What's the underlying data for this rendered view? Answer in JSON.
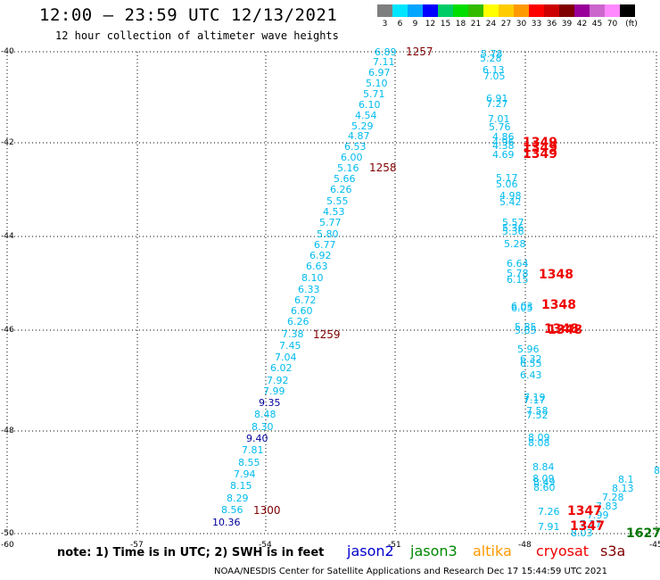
{
  "header": {
    "title": "12:00 – 23:59 UTC 12/13/2021",
    "subtitle": "12 hour collection of altimeter wave heights"
  },
  "legend": {
    "colors": [
      "#7f7f7f",
      "#00e5ff",
      "#00a6ff",
      "#0000ff",
      "#00cc66",
      "#00dd00",
      "#33bb00",
      "#ffff00",
      "#ffcc00",
      "#ff9900",
      "#ff0000",
      "#cc0000",
      "#800000",
      "#990099",
      "#cc66cc",
      "#ff88ff",
      "#000000"
    ],
    "labels": [
      "3",
      "6",
      "9",
      "12",
      "15",
      "18",
      "21",
      "24",
      "27",
      "30",
      "33",
      "36",
      "39",
      "42",
      "45",
      "70",
      "(ft)"
    ]
  },
  "map": {
    "lat_labels": [
      "-40",
      "-42",
      "-44",
      "-46",
      "-48",
      "-50"
    ],
    "lon_labels": [
      "-60",
      "-57",
      "-54",
      "-51",
      "-48",
      "-45"
    ],
    "colors": {
      "cyan": "#00bbee",
      "navy": "#000099",
      "red": "#ee0000",
      "darkred": "#800000",
      "green": "#007700"
    },
    "tracks": [
      {
        "name": "track-west",
        "color": "cyan",
        "values": [
          "6.89",
          "7.11",
          "6.97",
          "5.10",
          "5.71",
          "6.10",
          "4.54",
          "5.29",
          "4.87",
          "6.53",
          "6.00",
          "5.16",
          "5.66",
          "6.26",
          "5.55",
          "4.53",
          "5.77",
          "5.80",
          "6.77",
          "6.92",
          "6.63",
          "8.10",
          "6.33",
          "6.72",
          "6.60",
          "6.26",
          "7.38",
          "7.45",
          "7.04",
          "6.02",
          "7.92",
          "7.99",
          "9.35",
          "8.48",
          "8.30",
          "9.40",
          "7.81",
          "8.55",
          "7.94",
          "8.15",
          "8.29",
          "8.56",
          "10.36"
        ]
      },
      {
        "name": "track-east",
        "color": "cyan",
        "values": [
          "5.78",
          "5.28",
          "6.13",
          "7.05",
          "6.91",
          "7.27",
          "7.01",
          "5.76",
          "4.86",
          "4.96",
          "4.38",
          "4.69",
          "5.17",
          "5.06",
          "4.98",
          "5.42",
          "5.57",
          "5.36",
          "5.36",
          "5.28",
          "6.64",
          "5.78",
          "6.15",
          "6.03",
          "6.05",
          "5.85",
          "5.85",
          "5.96",
          "6.32",
          "6.55",
          "6.43",
          "7.19",
          "7.17",
          "7.58",
          "7.52",
          "8.09",
          "8.08",
          "8.84",
          "8.09",
          "8.49",
          "8.60",
          "7.26",
          "7.91",
          "8.03",
          "7.27",
          "7.99",
          "7.83",
          "7.28",
          "8.13",
          "8.1",
          "8"
        ]
      }
    ],
    "time_stamps": [
      "1257",
      "1258",
      "1259",
      "1300",
      "1349",
      "1348",
      "1347",
      "1627"
    ]
  },
  "footer": {
    "note": "note:  1) Time is in UTC; 2) SWH is in feet",
    "satellites": [
      {
        "name": "jason2",
        "color": "#0000cc"
      },
      {
        "name": "jason3",
        "color": "#008800"
      },
      {
        "name": "altika",
        "color": "#ff9900"
      },
      {
        "name": "cryosat",
        "color": "#ee0000"
      },
      {
        "name": "s3a",
        "color": "#800000"
      }
    ],
    "credit": "NOAA/NESDIS Center for Satellite Applications and Research    Dec 17 15:44:59 UTC 2021"
  }
}
